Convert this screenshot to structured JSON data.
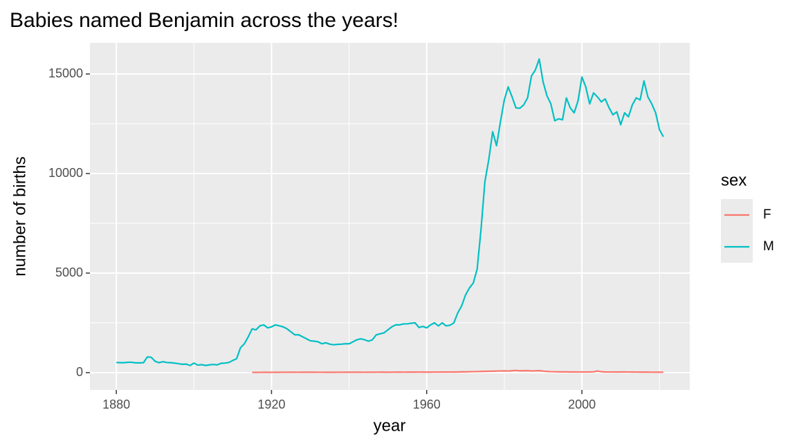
{
  "chart_data": {
    "type": "line",
    "title": "Babies named Benjamin across the years!",
    "x_label": "year",
    "y_label": "number of births",
    "legend_title": "sex",
    "x": [
      1880,
      1881,
      1882,
      1883,
      1884,
      1885,
      1886,
      1887,
      1888,
      1889,
      1890,
      1891,
      1892,
      1893,
      1894,
      1895,
      1896,
      1897,
      1898,
      1899,
      1900,
      1901,
      1902,
      1903,
      1904,
      1905,
      1906,
      1907,
      1908,
      1909,
      1910,
      1911,
      1912,
      1913,
      1914,
      1915,
      1916,
      1917,
      1918,
      1919,
      1920,
      1921,
      1922,
      1923,
      1924,
      1925,
      1926,
      1927,
      1928,
      1929,
      1930,
      1931,
      1932,
      1933,
      1934,
      1935,
      1936,
      1937,
      1938,
      1939,
      1940,
      1941,
      1942,
      1943,
      1944,
      1945,
      1946,
      1947,
      1948,
      1949,
      1950,
      1951,
      1952,
      1953,
      1954,
      1955,
      1956,
      1957,
      1958,
      1959,
      1960,
      1961,
      1962,
      1963,
      1964,
      1965,
      1966,
      1967,
      1968,
      1969,
      1970,
      1971,
      1972,
      1973,
      1974,
      1975,
      1976,
      1977,
      1978,
      1979,
      1980,
      1981,
      1982,
      1983,
      1984,
      1985,
      1986,
      1987,
      1988,
      1989,
      1990,
      1991,
      1992,
      1993,
      1994,
      1995,
      1996,
      1997,
      1998,
      1999,
      2000,
      2001,
      2002,
      2003,
      2004,
      2005,
      2006,
      2007,
      2008,
      2009,
      2010,
      2011,
      2012,
      2013,
      2014,
      2015,
      2016,
      2017,
      2018,
      2019,
      2020,
      2021
    ],
    "series": [
      {
        "name": "F",
        "color": "#F8766D",
        "values": [
          null,
          null,
          null,
          null,
          null,
          null,
          null,
          null,
          null,
          null,
          null,
          null,
          null,
          null,
          null,
          null,
          null,
          null,
          null,
          null,
          null,
          null,
          null,
          null,
          null,
          null,
          null,
          null,
          null,
          null,
          null,
          null,
          null,
          null,
          null,
          15,
          14,
          16,
          18,
          17,
          16,
          18,
          17,
          19,
          20,
          21,
          22,
          20,
          24,
          23,
          22,
          21,
          20,
          19,
          18,
          18,
          17,
          19,
          20,
          21,
          22,
          23,
          22,
          21,
          20,
          21,
          22,
          24,
          25,
          23,
          22,
          24,
          26,
          25,
          24,
          25,
          26,
          27,
          28,
          26,
          25,
          27,
          28,
          29,
          30,
          31,
          32,
          30,
          35,
          38,
          40,
          45,
          50,
          55,
          60,
          65,
          70,
          75,
          80,
          85,
          90,
          80,
          95,
          110,
          90,
          95,
          100,
          85,
          90,
          100,
          75,
          60,
          50,
          45,
          40,
          40,
          38,
          36,
          35,
          33,
          35,
          32,
          34,
          40,
          80,
          45,
          35,
          33,
          32,
          30,
          35,
          34,
          32,
          30,
          28,
          27,
          26,
          25,
          24,
          22,
          23,
          21
        ]
      },
      {
        "name": "M",
        "color": "#00BFC4",
        "values": [
          510,
          500,
          500,
          520,
          520,
          490,
          490,
          500,
          790,
          770,
          570,
          500,
          550,
          510,
          500,
          480,
          450,
          420,
          430,
          360,
          480,
          380,
          400,
          360,
          390,
          410,
          390,
          470,
          480,
          510,
          610,
          700,
          1250,
          1450,
          1800,
          2200,
          2150,
          2350,
          2400,
          2250,
          2300,
          2400,
          2350,
          2300,
          2200,
          2050,
          1900,
          1900,
          1800,
          1700,
          1600,
          1580,
          1550,
          1450,
          1500,
          1430,
          1400,
          1420,
          1430,
          1450,
          1450,
          1550,
          1650,
          1700,
          1650,
          1580,
          1650,
          1900,
          1950,
          2000,
          2150,
          2300,
          2400,
          2400,
          2450,
          2450,
          2480,
          2500,
          2270,
          2320,
          2250,
          2400,
          2500,
          2350,
          2500,
          2350,
          2380,
          2500,
          3000,
          3350,
          3900,
          4250,
          4500,
          5200,
          7200,
          9600,
          10700,
          12100,
          11400,
          12600,
          13700,
          14350,
          13850,
          13300,
          13280,
          13450,
          13800,
          14900,
          15200,
          15750,
          14600,
          13900,
          13500,
          12650,
          12750,
          12700,
          13800,
          13300,
          13050,
          13650,
          14850,
          14350,
          13500,
          14050,
          13850,
          13600,
          13750,
          13300,
          12950,
          13100,
          12450,
          13050,
          12850,
          13450,
          13800,
          13700,
          14650,
          13850,
          13500,
          13050,
          12200,
          11850
        ]
      }
    ],
    "xlim": [
      1873.2,
      2027.8
    ],
    "xticks": [
      1880,
      1920,
      1960,
      2000
    ],
    "x_minor_ticks": [
      1900,
      1940,
      1980,
      2020
    ],
    "ylim": [
      -868,
      16563
    ],
    "yticks": [
      0,
      5000,
      10000,
      15000
    ],
    "y_minor_ticks": [
      2500,
      7500,
      12500
    ],
    "grid": true,
    "legend_position": "right"
  }
}
